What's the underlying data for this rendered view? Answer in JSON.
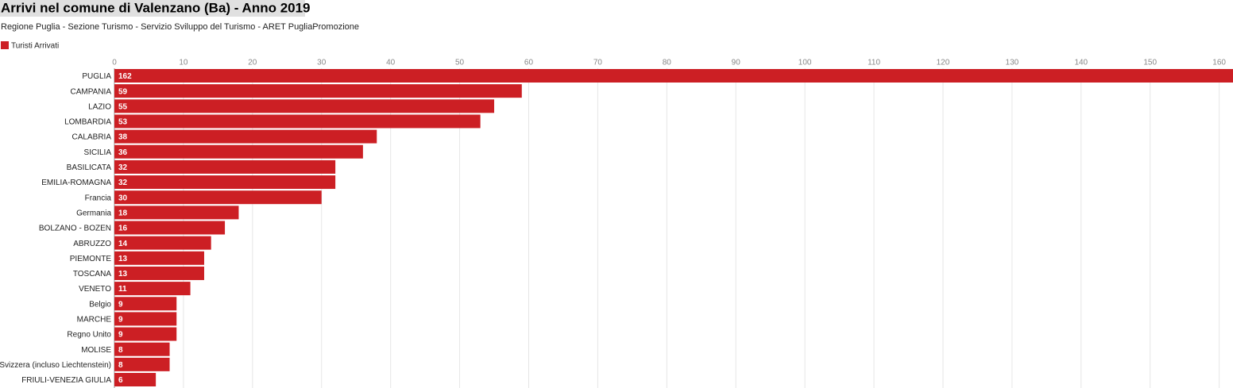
{
  "chart_data": {
    "type": "bar",
    "orientation": "horizontal",
    "title": "Arrivi nel comune di Valenzano (Ba) - Anno 2019",
    "subtitle": "Regione Puglia - Sezione Turismo - Servizio Sviluppo del Turismo - ARET PugliaPromozione",
    "categories": [
      "PUGLIA",
      "CAMPANIA",
      "LAZIO",
      "LOMBARDIA",
      "CALABRIA",
      "SICILIA",
      "BASILICATA",
      "EMILIA-ROMAGNA",
      "Francia",
      "Germania",
      "BOLZANO - BOZEN",
      "ABRUZZO",
      "PIEMONTE",
      "TOSCANA",
      "VENETO",
      "Belgio",
      "MARCHE",
      "Regno Unito",
      "MOLISE",
      "Svizzera (incluso Liechtenstein)",
      "FRIULI-VENEZIA GIULIA"
    ],
    "series": [
      {
        "name": "Turisti Arrivati",
        "color": "#cc1f24",
        "values": [
          162,
          59,
          55,
          53,
          38,
          36,
          32,
          32,
          30,
          18,
          16,
          14,
          13,
          13,
          11,
          9,
          9,
          9,
          8,
          8,
          6
        ]
      }
    ],
    "xlim": [
      0,
      162
    ],
    "xticks": [
      0,
      10,
      20,
      30,
      40,
      50,
      60,
      70,
      80,
      90,
      100,
      110,
      120,
      130,
      140,
      150,
      160
    ],
    "grid": true,
    "legend": "top-left"
  }
}
